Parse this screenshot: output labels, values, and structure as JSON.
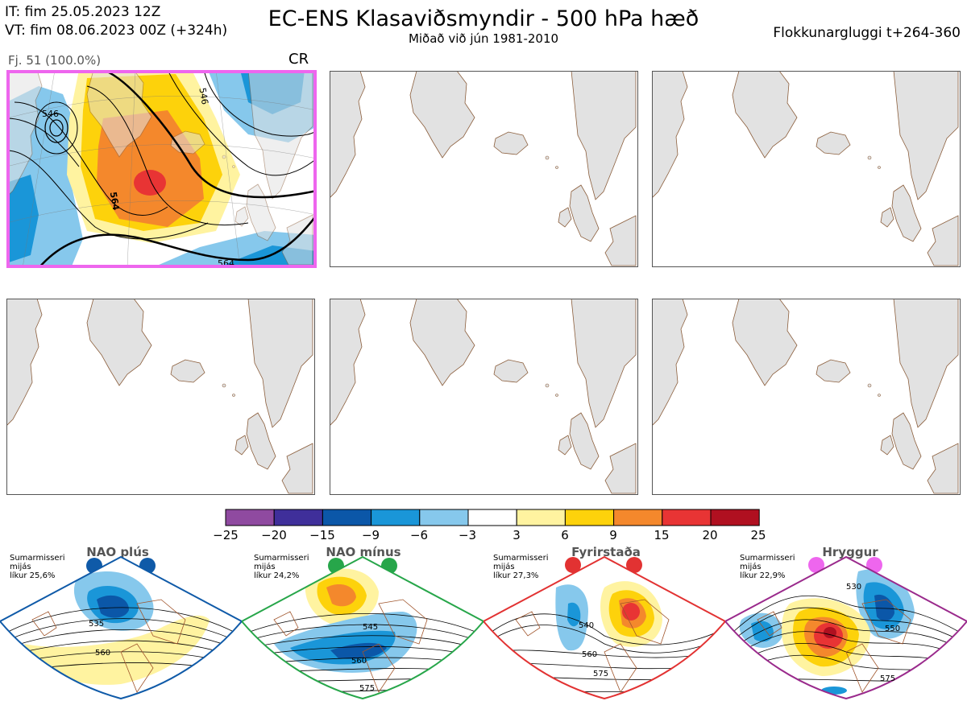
{
  "header": {
    "it_line": "IT: fim 25.05.2023 12Z",
    "vt_line": "VT: fim 08.06.2023 00Z  (+324h)",
    "title": "EC-ENS Klasaviðsmyndir - 500 hPa hæð",
    "subtitle": "Miðað við jún 1981-2010",
    "window": "Flokkunargluggi t+264-360"
  },
  "panel1": {
    "caption": "Fj. 51 (100.0%)",
    "tag": "CR",
    "contour_labels": [
      "546",
      "546",
      "564",
      "564"
    ],
    "frame_color": "#ee66ee"
  },
  "colorbar": {
    "ticks": [
      "−25",
      "−20",
      "−15",
      "−9",
      "−6",
      "−3",
      "3",
      "6",
      "9",
      "15",
      "20",
      "25"
    ],
    "colors": [
      "#8f4aa0",
      "#3f2f9a",
      "#0b57a8",
      "#1a96d8",
      "#86c8ec",
      "#ffffff",
      "#fff3a0",
      "#fdd20b",
      "#f4882c",
      "#e83434",
      "#b01020"
    ]
  },
  "regimes": [
    {
      "name": "NAO plús",
      "season": "Sumarmisseri",
      "note": "mijás",
      "prob": "líkur 25,6%",
      "color": "#0f5aa8",
      "labels": [
        "535",
        "560"
      ]
    },
    {
      "name": "NAO mínus",
      "season": "Sumarmisseri",
      "note": "mijás",
      "prob": "líkur 24,2%",
      "color": "#27a64a",
      "labels": [
        "545",
        "560",
        "575"
      ]
    },
    {
      "name": "Fyrirstaða",
      "season": "Sumarmisseri",
      "note": "mijás",
      "prob": "líkur 27,3%",
      "color": "#e23232",
      "labels": [
        "540",
        "560",
        "575"
      ]
    },
    {
      "name": "Hryggur",
      "season": "Sumarmisseri",
      "note": "mijás",
      "prob": "líkur 22,9%",
      "color": "#9a2a8c",
      "dot_color": "#ee66ee",
      "labels": [
        "530",
        "550",
        "575"
      ]
    }
  ]
}
